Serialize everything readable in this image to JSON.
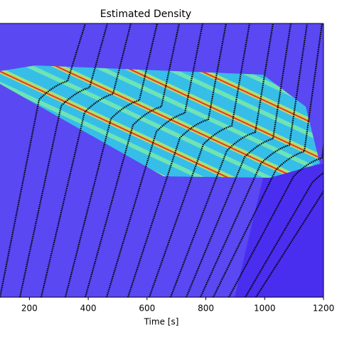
{
  "chart_data": {
    "type": "density",
    "title": "Estimated Density",
    "xlabel": "Time [s]",
    "xlim": [
      100,
      1200
    ],
    "xticks": [
      200,
      400,
      600,
      800,
      1000,
      1200
    ]
  }
}
